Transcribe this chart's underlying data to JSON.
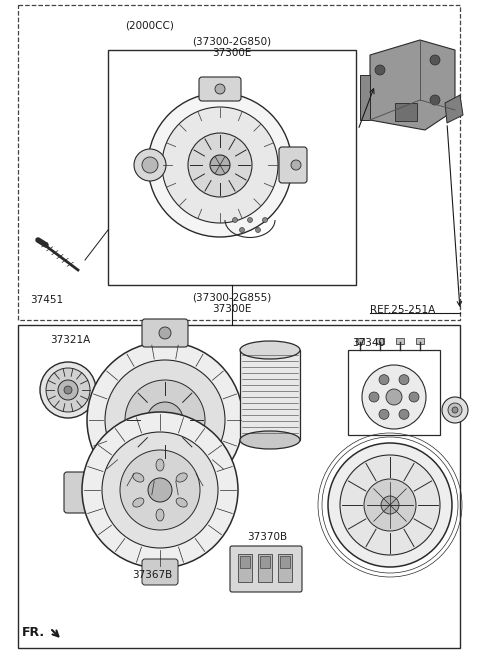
{
  "bg_color": "#ffffff",
  "line_color": "#2a2a2a",
  "text_color": "#1a1a1a",
  "dashed_color": "#444444",
  "gray_fill": "#c8c8c8",
  "light_gray": "#e0e0e0",
  "labels": {
    "2000cc": "(2000CC)",
    "part1_code": "(37300-2G850)",
    "part1_num": "37300E",
    "part2_code": "(37300-2G855)",
    "part2_num": "37300E",
    "ref": "REF.25-251A",
    "bolt": "37451",
    "pulley": "37321A",
    "rectifier": "37340",
    "regulator": "37370B",
    "rear_bracket": "37367B",
    "fr": "FR."
  }
}
